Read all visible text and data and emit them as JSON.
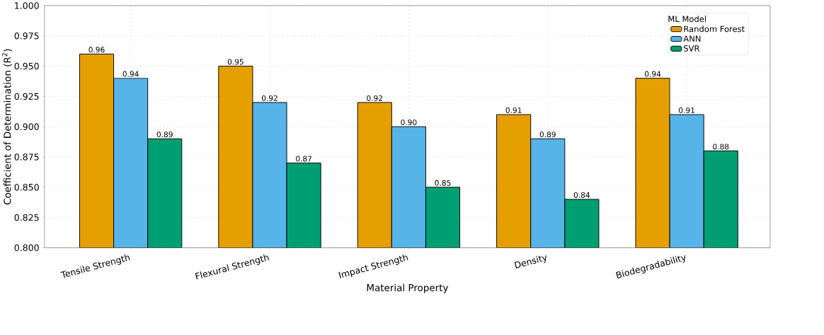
{
  "chart_data": {
    "type": "bar",
    "xlabel": "Material Property",
    "ylabel": "Coefficient of Determination (R$^{2}$)",
    "categories": [
      "Tensile Strength",
      "Flexural Strength",
      "Impact Strength",
      "Density",
      "Biodegradability"
    ],
    "legend_title": "ML Model",
    "series": [
      {
        "name": "Random Forest",
        "color": "#e69f00",
        "values": [
          0.96,
          0.95,
          0.92,
          0.91,
          0.94
        ],
        "value_labels": [
          "0.96",
          "0.95",
          "0.92",
          "0.91",
          "0.94"
        ]
      },
      {
        "name": "ANN",
        "color": "#56b4e9",
        "values": [
          0.94,
          0.92,
          0.9,
          0.89,
          0.91
        ],
        "value_labels": [
          "0.94",
          "0.92",
          "0.90",
          "0.89",
          "0.91"
        ]
      },
      {
        "name": "SVR",
        "color": "#009e73",
        "values": [
          0.89,
          0.87,
          0.85,
          0.84,
          0.88
        ],
        "value_labels": [
          "0.89",
          "0.87",
          "0.85",
          "0.84",
          "0.88"
        ]
      }
    ],
    "ylim": [
      0.8,
      1.0
    ],
    "yticks": [
      {
        "value": 0.8,
        "label": "0.800"
      },
      {
        "value": 0.825,
        "label": "0.825"
      },
      {
        "value": 0.85,
        "label": "0.850"
      },
      {
        "value": 0.875,
        "label": "0.875"
      },
      {
        "value": 0.9,
        "label": "0.900"
      },
      {
        "value": 0.925,
        "label": "0.925"
      },
      {
        "value": 0.95,
        "label": "0.950"
      },
      {
        "value": 0.975,
        "label": "0.975"
      },
      {
        "value": 1.0,
        "label": "1.000"
      }
    ],
    "grid": true,
    "legend": "top right"
  }
}
